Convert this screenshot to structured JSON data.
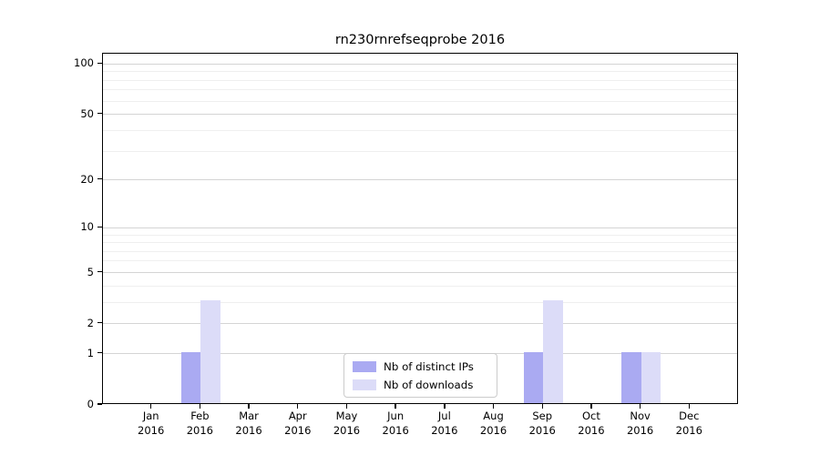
{
  "chart_data": {
    "type": "bar",
    "title": "rn230rnrefseqprobe 2016",
    "categories": [
      {
        "month": "Jan",
        "year": "2016"
      },
      {
        "month": "Feb",
        "year": "2016"
      },
      {
        "month": "Mar",
        "year": "2016"
      },
      {
        "month": "Apr",
        "year": "2016"
      },
      {
        "month": "May",
        "year": "2016"
      },
      {
        "month": "Jun",
        "year": "2016"
      },
      {
        "month": "Jul",
        "year": "2016"
      },
      {
        "month": "Aug",
        "year": "2016"
      },
      {
        "month": "Sep",
        "year": "2016"
      },
      {
        "month": "Oct",
        "year": "2016"
      },
      {
        "month": "Nov",
        "year": "2016"
      },
      {
        "month": "Dec",
        "year": "2016"
      }
    ],
    "series": [
      {
        "name": "Nb of distinct IPs",
        "color": "#aaaaf2",
        "values": [
          0,
          1,
          0,
          0,
          0,
          0,
          0,
          0,
          1,
          0,
          1,
          0
        ]
      },
      {
        "name": "Nb of downloads",
        "color": "#dcdcf8",
        "values": [
          0,
          3,
          0,
          0,
          0,
          0,
          0,
          0,
          3,
          0,
          1,
          0
        ]
      }
    ],
    "xlabel": "",
    "ylabel": "",
    "yscale": "log1p",
    "ylim": [
      0,
      115
    ],
    "y_major_ticks": [
      0,
      1,
      2,
      5,
      10,
      20,
      50,
      100
    ],
    "y_minor_gridlines": [
      3,
      4,
      6,
      7,
      8,
      9,
      30,
      40,
      60,
      70,
      80,
      90
    ],
    "grid": true,
    "legend_position": "lower center",
    "colors": {
      "grid_major": "#d4d4d4",
      "grid_minor": "#efefef",
      "spine": "#000000",
      "text": "#000000",
      "background": "#ffffff"
    }
  }
}
